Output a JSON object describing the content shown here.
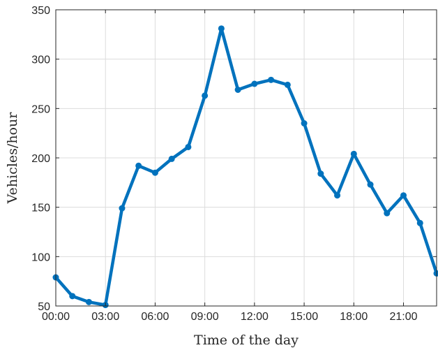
{
  "chart_data": {
    "type": "line",
    "title": "",
    "xlabel": "Time of the day",
    "ylabel": "Vehicles/hour",
    "xlim": [
      0,
      23
    ],
    "ylim": [
      50,
      350
    ],
    "grid": true,
    "x_ticks": [
      {
        "value": 0,
        "label": "00:00"
      },
      {
        "value": 3,
        "label": "03:00"
      },
      {
        "value": 6,
        "label": "06:00"
      },
      {
        "value": 9,
        "label": "09:00"
      },
      {
        "value": 12,
        "label": "12:00"
      },
      {
        "value": 15,
        "label": "15:00"
      },
      {
        "value": 18,
        "label": "18:00"
      },
      {
        "value": 21,
        "label": "21:00"
      }
    ],
    "y_ticks": [
      {
        "value": 50,
        "label": "50"
      },
      {
        "value": 100,
        "label": "100"
      },
      {
        "value": 150,
        "label": "150"
      },
      {
        "value": 200,
        "label": "200"
      },
      {
        "value": 250,
        "label": "250"
      },
      {
        "value": 300,
        "label": "300"
      },
      {
        "value": 350,
        "label": "350"
      }
    ],
    "series": [
      {
        "color": "#0072bd",
        "x": [
          0,
          1,
          2,
          3,
          4,
          5,
          6,
          7,
          8,
          9,
          10,
          11,
          12,
          13,
          14,
          15,
          16,
          17,
          18,
          19,
          20,
          21,
          22,
          23
        ],
        "values": [
          79,
          60,
          54,
          51,
          149,
          192,
          185,
          199,
          211,
          263,
          331,
          269,
          275,
          279,
          274,
          235,
          184,
          162,
          204,
          173,
          144,
          162,
          134,
          83
        ]
      }
    ]
  }
}
